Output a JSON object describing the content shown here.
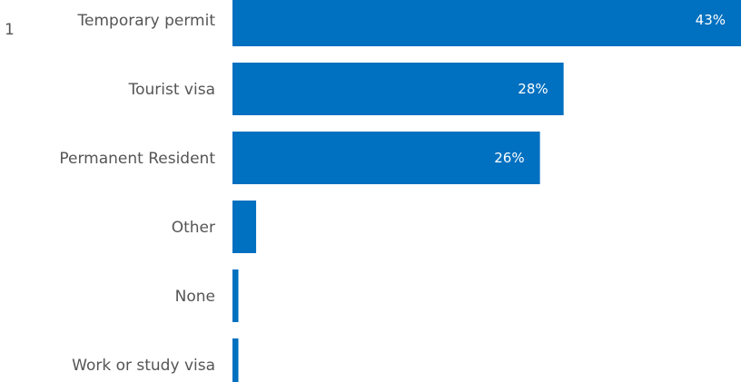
{
  "footnote_marker": "1",
  "chart_data": {
    "type": "bar",
    "orientation": "horizontal",
    "categories": [
      "Temporary permit",
      "Tourist visa",
      "Permanent Resident",
      "Other",
      "None",
      "Work or study visa"
    ],
    "values": [
      43,
      28,
      26,
      2,
      0.5,
      0.5
    ],
    "data_labels": [
      "43%",
      "28%",
      "26%",
      "",
      "",
      ""
    ],
    "unit": "%",
    "xlim": [
      0,
      43
    ],
    "grid": false,
    "bar_color": "#0070c0",
    "label_color": "#555555",
    "value_label_color": "#ffffff"
  }
}
